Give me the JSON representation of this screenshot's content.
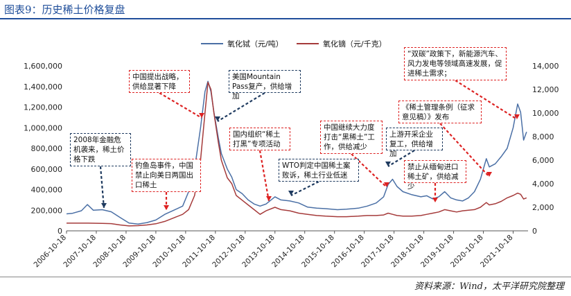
{
  "title": "图表9：历史稀土价格复盘",
  "source": "资料来源：Wind，太平洋研究院整理",
  "chart_data": {
    "type": "line",
    "x": [
      "2006-10-18",
      "2007-10-18",
      "2008-10-18",
      "2009-10-18",
      "2010-10-18",
      "2011-10-18",
      "2012-10-18",
      "2013-10-18",
      "2014-10-18",
      "2015-10-18",
      "2016-10-18",
      "2017-10-18",
      "2018-10-18",
      "2019-10-18",
      "2020-10-18",
      "2021-10-18"
    ],
    "y_left_lim": [
      0,
      1600000
    ],
    "y_left_ticks": [
      "0",
      "200,000",
      "400,000",
      "600,000",
      "800,000",
      "1,000,000",
      "1,200,000",
      "1,400,000",
      "1,600,000"
    ],
    "y_right_lim": [
      0,
      14000
    ],
    "y_right_ticks": [
      "0",
      "2,000",
      "4,000",
      "6,000",
      "8,000",
      "10,000",
      "12,000",
      "14,000"
    ],
    "legend_position": "top",
    "series": [
      {
        "name": "氧化铽（元/吨）",
        "axis": "left",
        "color": "#4a6fa5",
        "points": [
          [
            2006.8,
            165000
          ],
          [
            2007.0,
            170000
          ],
          [
            2007.3,
            195000
          ],
          [
            2007.5,
            255000
          ],
          [
            2007.7,
            200000
          ],
          [
            2008.0,
            205000
          ],
          [
            2008.3,
            185000
          ],
          [
            2008.6,
            130000
          ],
          [
            2008.9,
            75000
          ],
          [
            2009.2,
            65000
          ],
          [
            2009.5,
            80000
          ],
          [
            2009.8,
            105000
          ],
          [
            2010.1,
            160000
          ],
          [
            2010.4,
            200000
          ],
          [
            2010.7,
            240000
          ],
          [
            2010.9,
            380000
          ],
          [
            2011.1,
            600000
          ],
          [
            2011.3,
            1000000
          ],
          [
            2011.45,
            1350000
          ],
          [
            2011.55,
            1450000
          ],
          [
            2011.65,
            1350000
          ],
          [
            2011.75,
            1150000
          ],
          [
            2011.9,
            900000
          ],
          [
            2012.0,
            750000
          ],
          [
            2012.2,
            600000
          ],
          [
            2012.35,
            520000
          ],
          [
            2012.5,
            400000
          ],
          [
            2012.7,
            360000
          ],
          [
            2012.9,
            300000
          ],
          [
            2013.1,
            260000
          ],
          [
            2013.3,
            240000
          ],
          [
            2013.5,
            260000
          ],
          [
            2013.8,
            330000
          ],
          [
            2014.0,
            300000
          ],
          [
            2014.3,
            290000
          ],
          [
            2014.6,
            270000
          ],
          [
            2014.9,
            230000
          ],
          [
            2015.2,
            220000
          ],
          [
            2015.5,
            215000
          ],
          [
            2015.9,
            205000
          ],
          [
            2016.2,
            210000
          ],
          [
            2016.6,
            220000
          ],
          [
            2016.9,
            240000
          ],
          [
            2017.2,
            270000
          ],
          [
            2017.45,
            330000
          ],
          [
            2017.6,
            450000
          ],
          [
            2017.75,
            500000
          ],
          [
            2017.9,
            430000
          ],
          [
            2018.1,
            380000
          ],
          [
            2018.4,
            350000
          ],
          [
            2018.7,
            330000
          ],
          [
            2018.9,
            340000
          ],
          [
            2019.1,
            310000
          ],
          [
            2019.3,
            330000
          ],
          [
            2019.5,
            380000
          ],
          [
            2019.7,
            320000
          ],
          [
            2019.9,
            300000
          ],
          [
            2020.1,
            290000
          ],
          [
            2020.3,
            320000
          ],
          [
            2020.5,
            380000
          ],
          [
            2020.7,
            500000
          ],
          [
            2020.9,
            700000
          ],
          [
            2021.0,
            620000
          ],
          [
            2021.2,
            650000
          ],
          [
            2021.4,
            720000
          ],
          [
            2021.6,
            800000
          ],
          [
            2021.8,
            1000000
          ],
          [
            2021.95,
            1230000
          ],
          [
            2022.05,
            1150000
          ],
          [
            2022.15,
            880000
          ],
          [
            2022.25,
            960000
          ]
        ]
      },
      {
        "name": "氧化镝（元/千克）",
        "axis": "right",
        "color": "#a53a3a",
        "points": [
          [
            2006.8,
            650
          ],
          [
            2007.0,
            650
          ],
          [
            2007.5,
            650
          ],
          [
            2008.0,
            630
          ],
          [
            2008.3,
            610
          ],
          [
            2008.6,
            500
          ],
          [
            2008.9,
            420
          ],
          [
            2009.2,
            440
          ],
          [
            2009.5,
            500
          ],
          [
            2009.8,
            600
          ],
          [
            2010.1,
            800
          ],
          [
            2010.4,
            1100
          ],
          [
            2010.7,
            1400
          ],
          [
            2010.9,
            1800
          ],
          [
            2011.1,
            3000
          ],
          [
            2011.3,
            6000
          ],
          [
            2011.45,
            10000
          ],
          [
            2011.55,
            12600
          ],
          [
            2011.65,
            12000
          ],
          [
            2011.75,
            10000
          ],
          [
            2011.9,
            7500
          ],
          [
            2012.0,
            6000
          ],
          [
            2012.2,
            4500
          ],
          [
            2012.35,
            4000
          ],
          [
            2012.5,
            3000
          ],
          [
            2012.7,
            2600
          ],
          [
            2012.9,
            2200
          ],
          [
            2013.1,
            1800
          ],
          [
            2013.3,
            1400
          ],
          [
            2013.5,
            1700
          ],
          [
            2013.8,
            2000
          ],
          [
            2014.0,
            1800
          ],
          [
            2014.3,
            1700
          ],
          [
            2014.6,
            1500
          ],
          [
            2014.9,
            1400
          ],
          [
            2015.2,
            1300
          ],
          [
            2015.5,
            1250
          ],
          [
            2015.9,
            1200
          ],
          [
            2016.2,
            1200
          ],
          [
            2016.6,
            1250
          ],
          [
            2016.9,
            1300
          ],
          [
            2017.2,
            1300
          ],
          [
            2017.45,
            1350
          ],
          [
            2017.6,
            1500
          ],
          [
            2017.75,
            1400
          ],
          [
            2017.9,
            1300
          ],
          [
            2018.1,
            1250
          ],
          [
            2018.4,
            1250
          ],
          [
            2018.7,
            1300
          ],
          [
            2018.9,
            1400
          ],
          [
            2019.1,
            1500
          ],
          [
            2019.3,
            1600
          ],
          [
            2019.5,
            1800
          ],
          [
            2019.7,
            1700
          ],
          [
            2019.9,
            1600
          ],
          [
            2020.1,
            1700
          ],
          [
            2020.3,
            1750
          ],
          [
            2020.5,
            1800
          ],
          [
            2020.7,
            2000
          ],
          [
            2020.9,
            2400
          ],
          [
            2021.0,
            2200
          ],
          [
            2021.2,
            2300
          ],
          [
            2021.4,
            2500
          ],
          [
            2021.6,
            2800
          ],
          [
            2021.8,
            3000
          ],
          [
            2021.95,
            3200
          ],
          [
            2022.05,
            3100
          ],
          [
            2022.15,
            2700
          ],
          [
            2022.25,
            2800
          ]
        ]
      }
    ],
    "annotations": [
      {
        "text": "2008年金融危机袭来，稀土价格下跌",
        "style": "navy"
      },
      {
        "text": "钓鱼岛事件，中国禁止向美日两国出口稀土",
        "style": "red"
      },
      {
        "text": "中国提出战略，供给显著下降",
        "style": "red"
      },
      {
        "text": "美国Mountain Pass复产，供给增加",
        "style": "navy"
      },
      {
        "text": "国内组织“稀土打黑”专项活动",
        "style": "red"
      },
      {
        "text": "WTO判定中国稀土案败诉，稀土行业低迷",
        "style": "navy"
      },
      {
        "text": "中国继续大力度打击“黑稀土”工作，供给减少",
        "style": "red"
      },
      {
        "text": "上游开采企业复工，供给增加",
        "style": "navy"
      },
      {
        "text": "《稀土管理条例（征求意见稿）》发布",
        "style": "red"
      },
      {
        "text": "禁止从缅甸进口稀土矿，供给减少",
        "style": "red"
      },
      {
        "text": "“双碳”政策下，新能源汽车、风力发电等领域高速发展，促进稀土需求；",
        "style": "red"
      }
    ]
  }
}
